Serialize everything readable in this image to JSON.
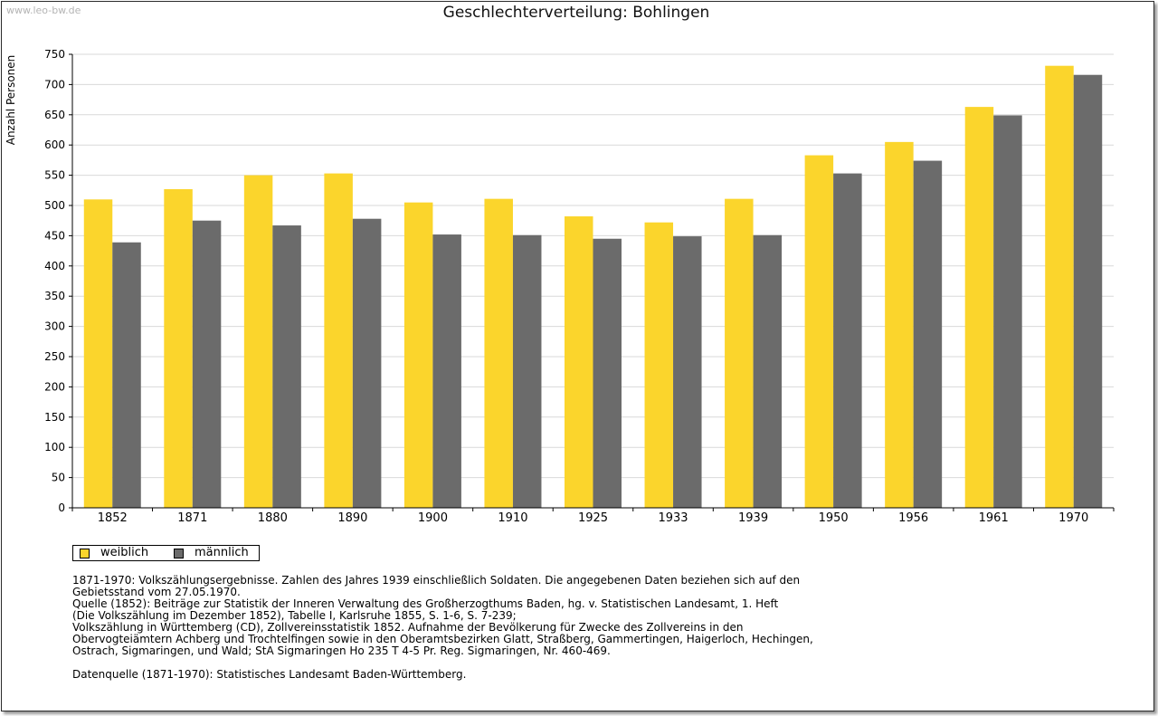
{
  "watermark": "www.leo-bw.de",
  "colors": {
    "weiblich": "#fbd52c",
    "maennlich": "#6b6b6b",
    "grid": "#d9d9d9",
    "axis": "#000000"
  },
  "chart_data": {
    "type": "bar",
    "title": "Geschlechterverteilung: Bohlingen",
    "xlabel": "",
    "ylabel": "Anzahl Personen",
    "ylim": [
      0,
      750
    ],
    "yticks": [
      0,
      50,
      100,
      150,
      200,
      250,
      300,
      350,
      400,
      450,
      500,
      550,
      600,
      650,
      700,
      750
    ],
    "categories": [
      "1852",
      "1871",
      "1880",
      "1890",
      "1900",
      "1910",
      "1925",
      "1933",
      "1939",
      "1950",
      "1956",
      "1961",
      "1970"
    ],
    "series": [
      {
        "name": "weiblich",
        "values": [
          510,
          527,
          550,
          553,
          505,
          511,
          482,
          472,
          511,
          583,
          605,
          663,
          731
        ]
      },
      {
        "name": "männlich",
        "values": [
          439,
          475,
          467,
          478,
          452,
          451,
          445,
          449,
          451,
          553,
          574,
          649,
          716
        ]
      }
    ],
    "grid": true,
    "legend_position": "bottom-left"
  },
  "legend": {
    "weiblich": "weiblich",
    "maennlich": "männlich"
  },
  "notes": {
    "line1": "1871-1970: Volkszählungsergebnisse. Zahlen des Jahres 1939 einschließlich Soldaten. Die angegebenen Daten beziehen sich auf den",
    "line2": "Gebietsstand vom 27.05.1970.",
    "line3": "Quelle (1852): Beiträge zur Statistik der Inneren Verwaltung des Großherzogthums Baden, hg. v. Statistischen Landesamt, 1. Heft",
    "line4": "(Die Volkszählung im Dezember 1852), Tabelle I, Karlsruhe 1855, S. 1-6, S. 7-239;",
    "line5": "Volkszählung in Württemberg (CD), Zollvereinsstatistik 1852. Aufnahme der Bevölkerung für Zwecke des Zollvereins in den",
    "line6": "Obervogteiämtern Achberg und Trochtelfingen sowie in den Oberamtsbezirken Glatt, Straßberg, Gammertingen, Haigerloch, Hechingen,",
    "line7": "Ostrach, Sigmaringen, und Wald; StA Sigmaringen Ho 235 T 4-5 Pr. Reg. Sigmaringen, Nr. 460-469.",
    "source": "Datenquelle (1871-1970): Statistisches Landesamt Baden-Württemberg."
  }
}
